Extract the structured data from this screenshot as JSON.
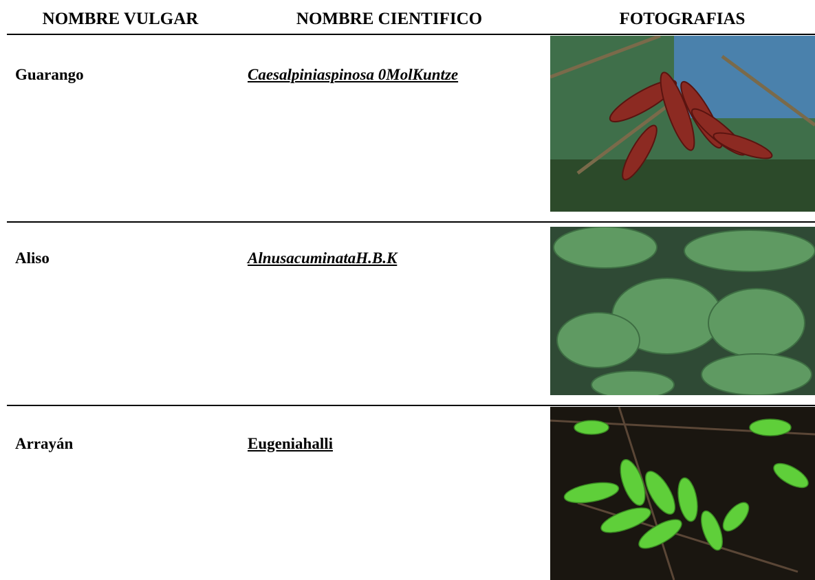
{
  "table": {
    "headers": [
      "NOMBRE VULGAR",
      "NOMBRE CIENTIFICO",
      "FOTOGRAFIAS"
    ],
    "rows": [
      [
        "Guarango",
        "Caesalpiniaspinosa 0MolKuntze"
      ],
      [
        "Aliso",
        "AlnusacuminataH.B.K"
      ],
      [
        "Arrayán",
        "Eugeniahalli"
      ]
    ]
  }
}
